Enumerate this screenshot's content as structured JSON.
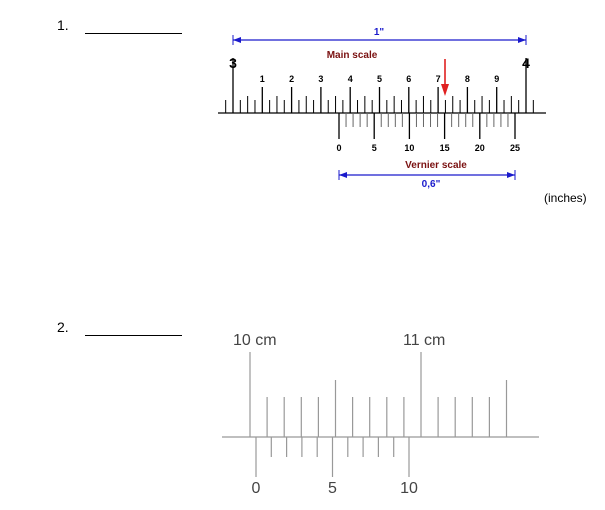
{
  "questions": [
    {
      "number": "1.",
      "unit_note": "(inches)"
    },
    {
      "number": "2."
    }
  ],
  "diagram1": {
    "top_dimension": "1\"",
    "main_title": "Main scale",
    "main_left": "3",
    "main_right": "4",
    "main_numbers": [
      "1",
      "2",
      "3",
      "4",
      "5",
      "6",
      "7",
      "8",
      "9"
    ],
    "vernier_numbers": [
      "0",
      "5",
      "10",
      "15",
      "20",
      "25"
    ],
    "vernier_title": "Vernier scale",
    "bottom_dimension": "0,6\"",
    "colors": {
      "dimension": "#1a1acc",
      "title": "#7a1010",
      "arrow": "#e02020"
    }
  },
  "diagram2": {
    "label_left": "10 cm",
    "label_right": "11 cm",
    "vernier_numbers": [
      "0",
      "5",
      "10"
    ]
  }
}
